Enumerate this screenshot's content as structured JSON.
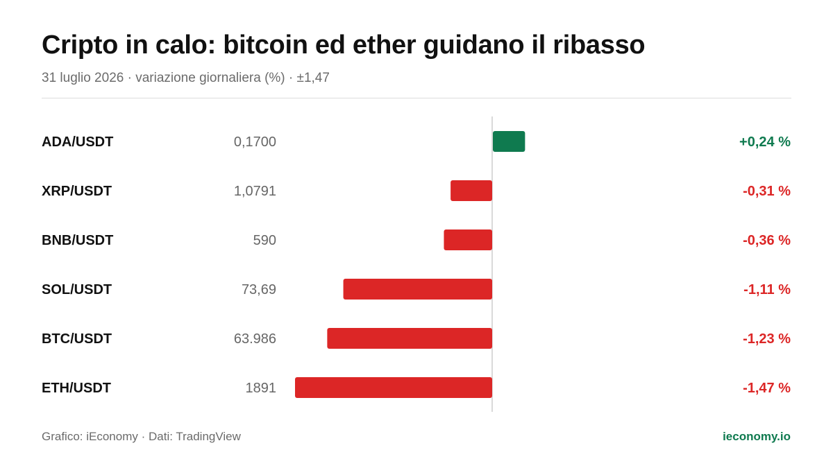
{
  "header": {
    "title": "Cripto in calo: bitcoin ed ether guidano il ribasso",
    "subtitle": "31 luglio 2026 · variazione giornaliera (%) · ±1,47"
  },
  "footer": {
    "source": "Grafico: iEconomy · Dati: TradingView",
    "brand": "ieconomy.io"
  },
  "colors": {
    "positive": "#0f7a4f",
    "negative": "#dc2626",
    "axis": "#d9d9d9"
  },
  "chart_data": {
    "type": "bar",
    "orientation": "horizontal",
    "xlim": [
      -1.47,
      1.47
    ],
    "categories": [
      "ADA/USDT",
      "XRP/USDT",
      "BNB/USDT",
      "SOL/USDT",
      "BTC/USDT",
      "ETH/USDT"
    ],
    "prices": [
      "0,1700",
      "1,0791",
      "590",
      "73,69",
      "63.986",
      "1891"
    ],
    "values": [
      0.24,
      -0.31,
      -0.36,
      -1.11,
      -1.23,
      -1.47
    ],
    "value_labels": [
      "+0,24 %",
      "-0,31 %",
      "-0,36 %",
      "-1,11 %",
      "-1,23 %",
      "-1,47 %"
    ]
  }
}
